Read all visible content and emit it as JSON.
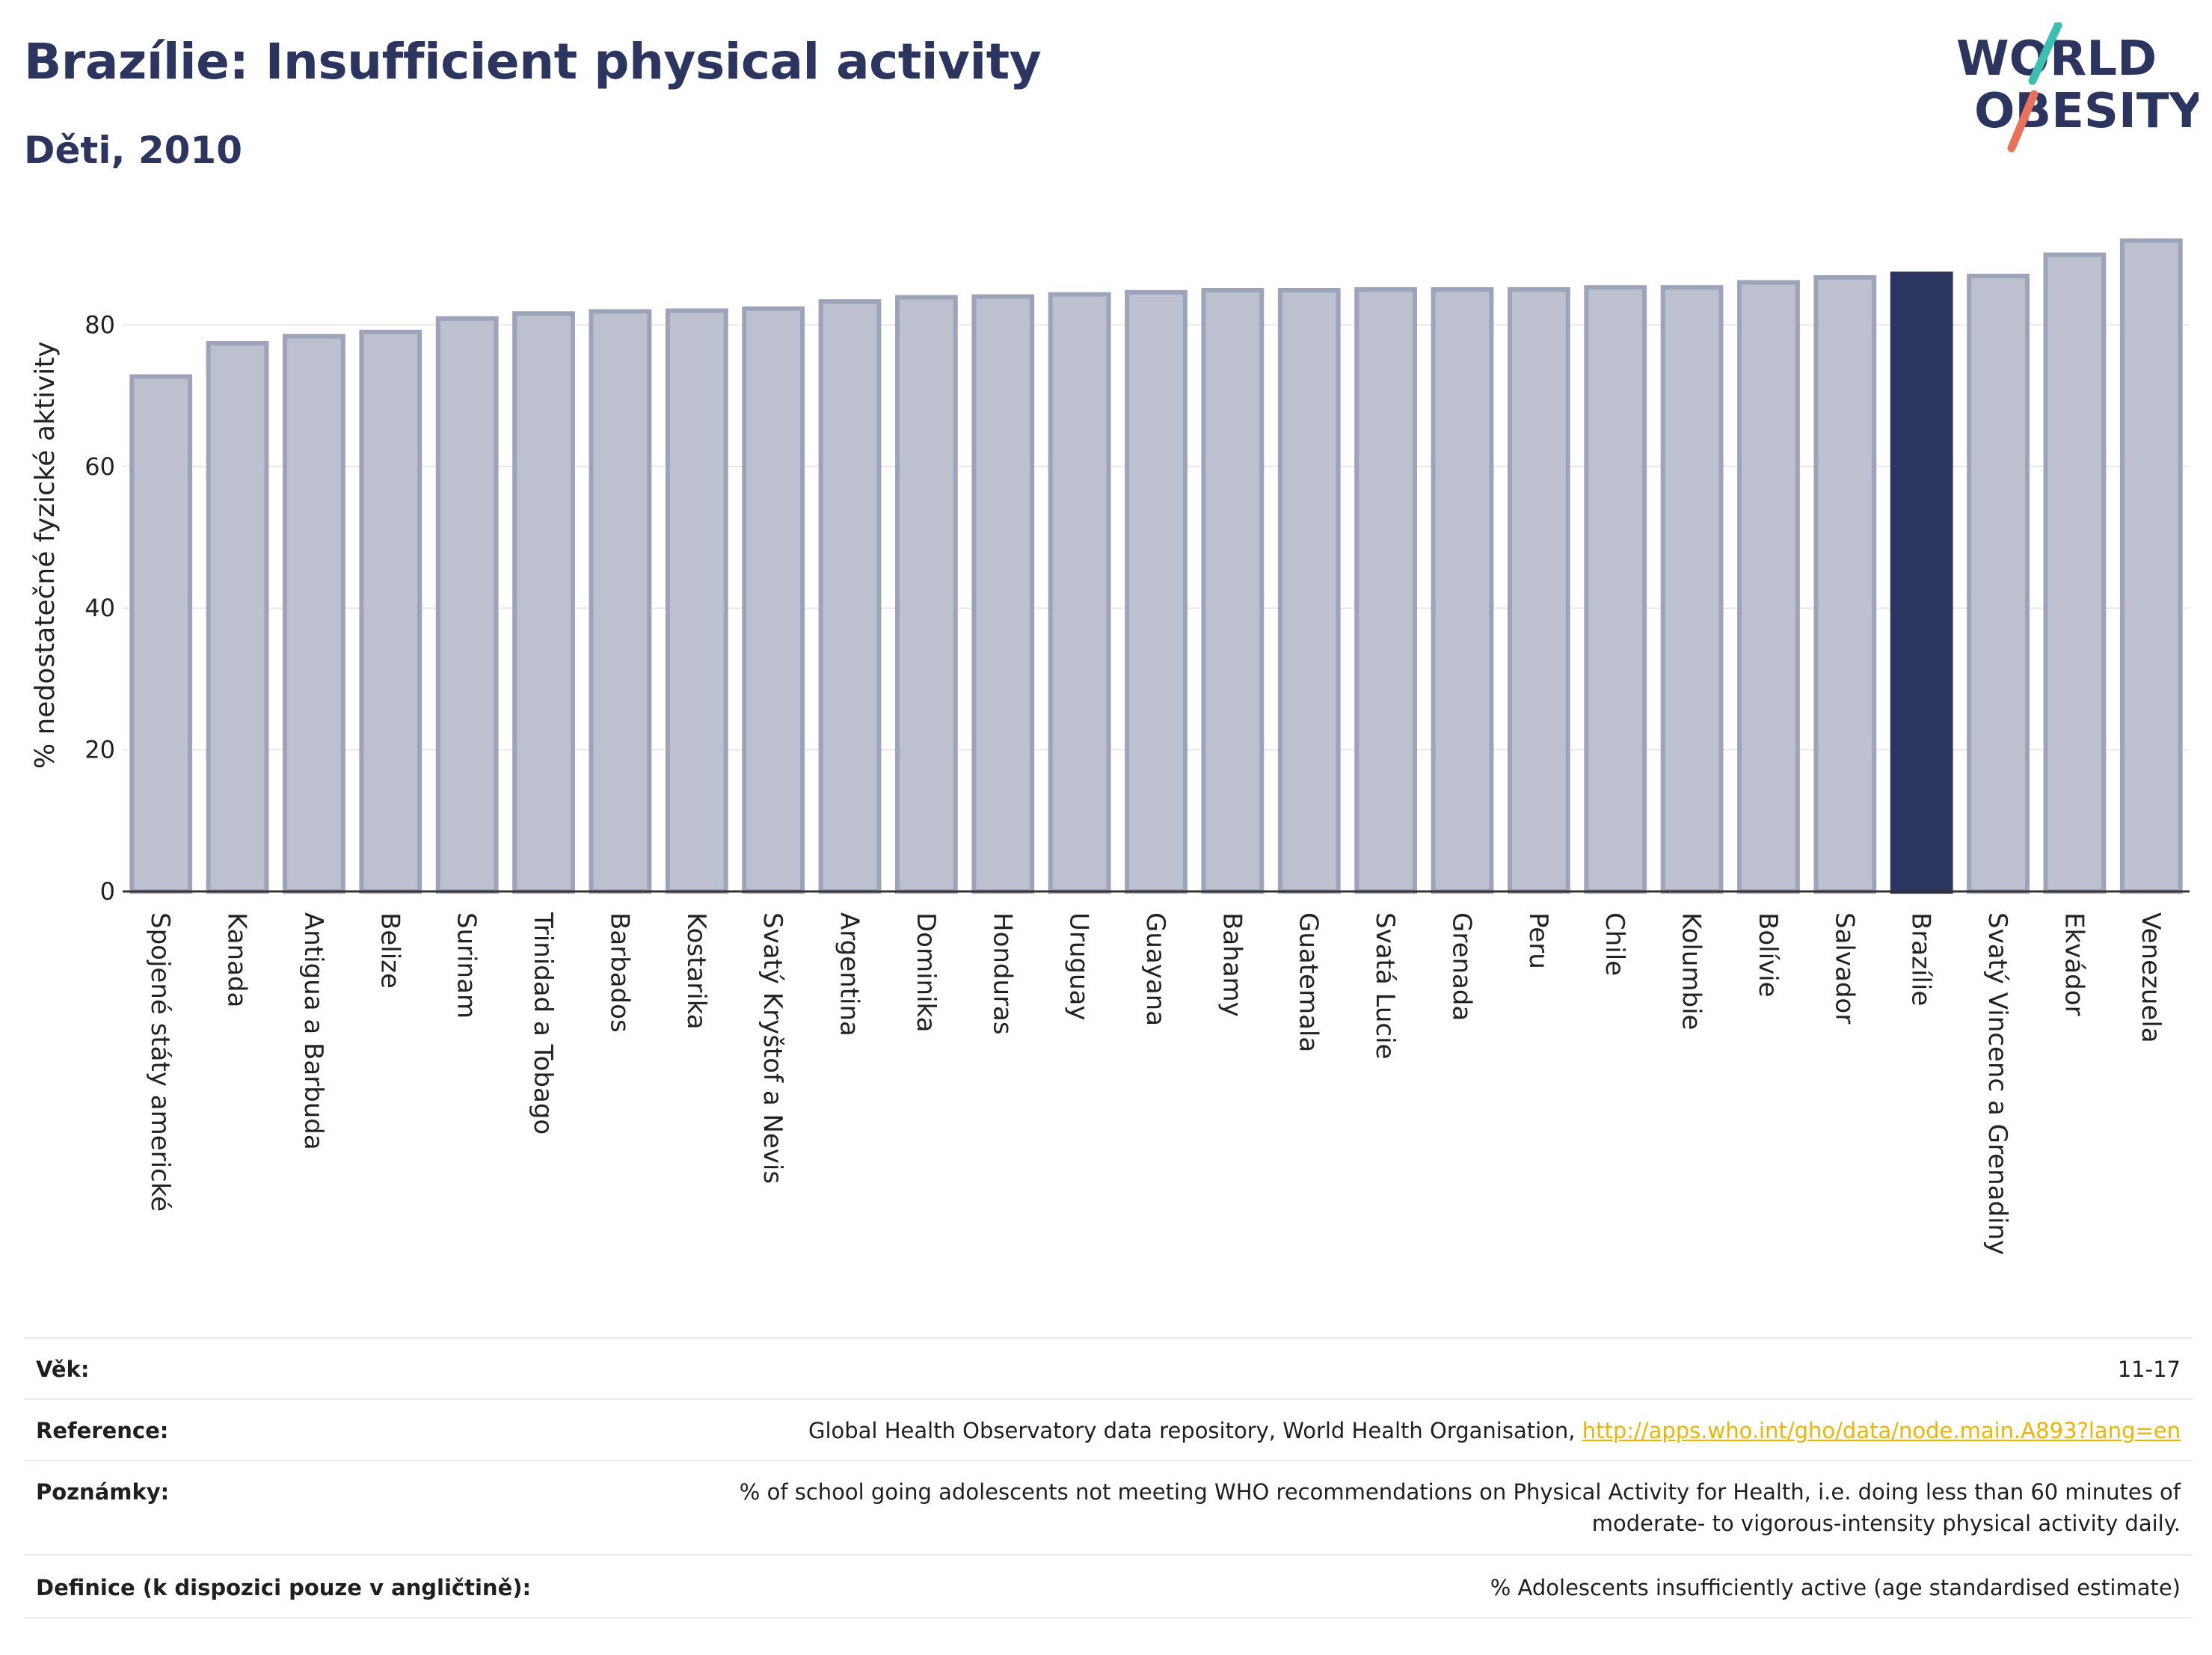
{
  "header": {
    "title": "Brazílie: Insufficient physical activity",
    "subtitle": "Děti, 2010",
    "logo_line1": "WORLD",
    "logo_line2": "OBESITY"
  },
  "colors": {
    "bar": "#bcc0cf",
    "bar_stroke": "#9da3b8",
    "highlight": "#2b3560",
    "title": "#2b3560",
    "logo_teal": "#3bbfb0",
    "logo_coral": "#e8735a"
  },
  "chart_data": {
    "type": "bar",
    "title": "Brazílie: Insufficient physical activity",
    "subtitle": "Děti, 2010",
    "ylabel": "% nedostatečné fyzické aktivity",
    "xlabel": "",
    "ylim": [
      0,
      95
    ],
    "yticks": [
      0,
      20,
      40,
      60,
      80
    ],
    "grid": true,
    "highlight": "Brazílie",
    "categories": [
      "Spojené státy americké",
      "Kanada",
      "Antigua a Barbuda",
      "Belize",
      "Surinam",
      "Trinidad a Tobago",
      "Barbados",
      "Kostarika",
      "Svatý Kryštof a Nevis",
      "Argentina",
      "Dominika",
      "Honduras",
      "Uruguay",
      "Guayana",
      "Bahamy",
      "Guatemala",
      "Svatá Lucie",
      "Grenada",
      "Peru",
      "Chile",
      "Kolumbie",
      "Bolívie",
      "Salvador",
      "Brazílie",
      "Svatý Vincenc a Grenadiny",
      "Ekvádor",
      "Venezuela"
    ],
    "values": [
      72.7,
      77.4,
      78.4,
      79.0,
      80.9,
      81.6,
      81.9,
      82.0,
      82.3,
      83.3,
      83.9,
      84.0,
      84.3,
      84.6,
      84.9,
      84.9,
      85.0,
      85.0,
      85.0,
      85.3,
      85.3,
      86.0,
      86.7,
      87.2,
      86.9,
      89.9,
      91.9
    ]
  },
  "meta": {
    "age_label": "Věk:",
    "age_value": "11-17",
    "ref_label": "Reference:",
    "ref_value": "Global Health Observatory data repository, World Health Organisation,",
    "ref_link": "http://apps.who.int/gho/data/node.main.A893?lang=en",
    "notes_label": "Poznámky:",
    "notes_line1": "% of school going adolescents not meeting WHO recommendations on Physical Activity for Health, i.e. doing less than 60 minutes of",
    "notes_line2": "moderate- to vigorous-intensity physical activity daily.",
    "def_label": "Definice (k dispozici pouze v angličtině):",
    "def_value": "% Adolescents insufficiently active (age standardised estimate)"
  }
}
